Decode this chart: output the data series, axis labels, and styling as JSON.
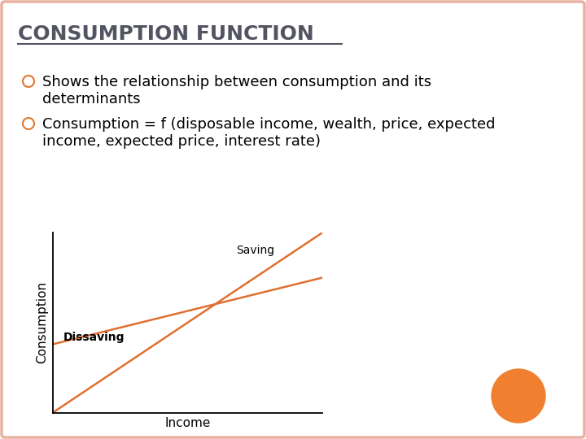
{
  "title": "CONSUMPTION FUNCTION",
  "title_color": "#535461",
  "title_fontsize": 18,
  "background_color": "#ffffff",
  "border_color": "#e8b0a0",
  "bullet_color": "#e07830",
  "bullet1_line1": "Shows the relationship between consumption and its",
  "bullet1_line2": "determinants",
  "bullet2_line1": "Consumption = f (disposable income, wealth, price, expected",
  "bullet2_line2": "income, expected price, interest rate)",
  "line_color": "#e07030",
  "xlabel": "Income",
  "ylabel": "Consumption",
  "label_saving": "Saving",
  "label_dissaving": "Dissaving",
  "orange_circle_color": "#f08030",
  "text_fontsize": 13
}
